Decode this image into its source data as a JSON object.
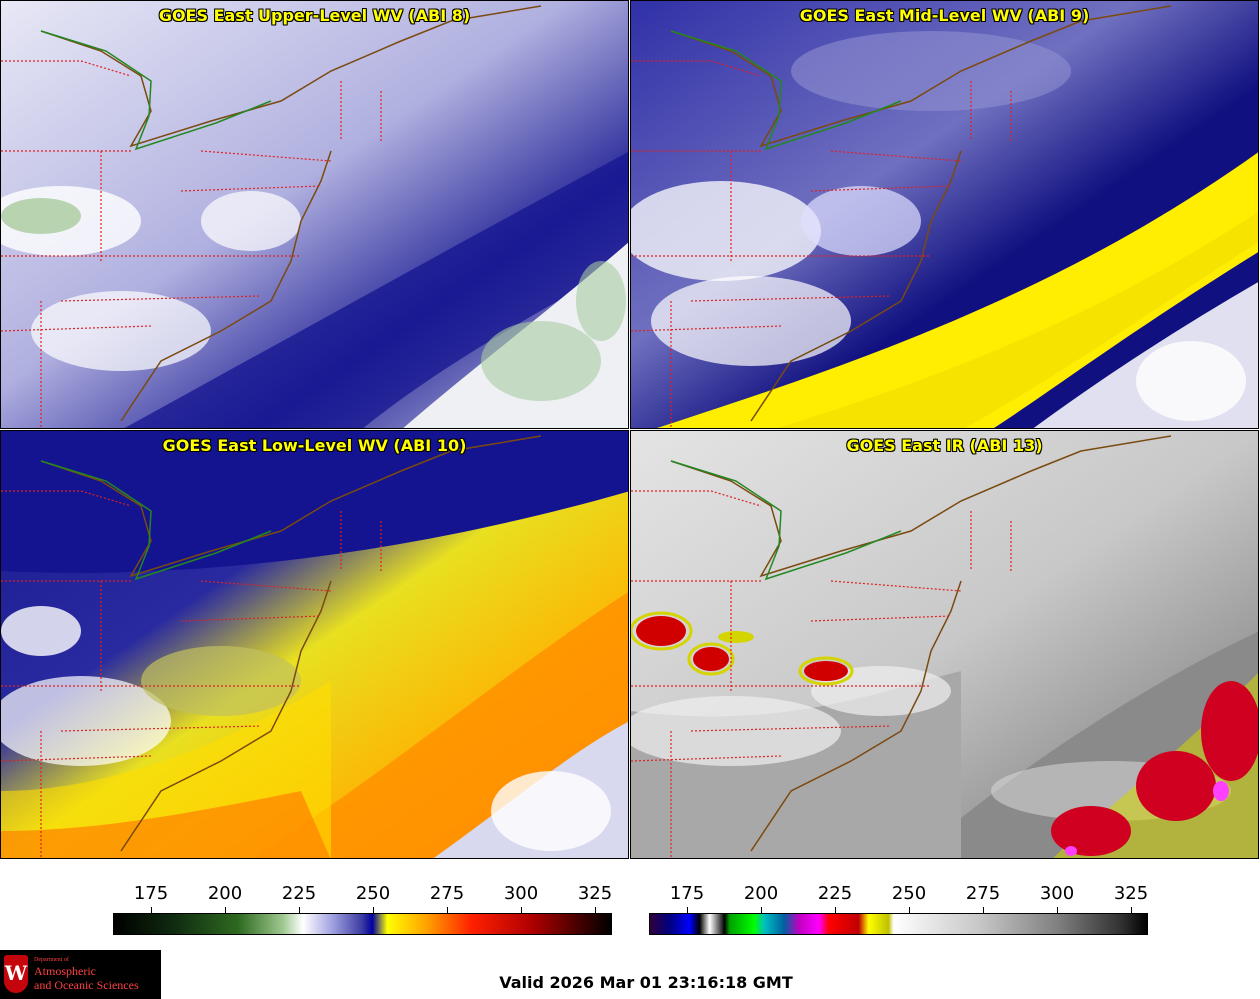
{
  "panels": {
    "upper": {
      "title": "GOES East Upper-Level WV (ABI 8)"
    },
    "mid": {
      "title": "GOES East Mid-Level WV (ABI 9)"
    },
    "low": {
      "title": "GOES East Low-Level WV (ABI 10)"
    },
    "ir": {
      "title": "GOES East IR (ABI 13)"
    }
  },
  "colorbars": {
    "wv": {
      "ticks": [
        "175",
        "200",
        "225",
        "250",
        "275",
        "300",
        "325"
      ]
    },
    "ir": {
      "ticks": [
        "175",
        "200",
        "225",
        "250",
        "275",
        "300",
        "325"
      ]
    }
  },
  "logo": {
    "crest": "W",
    "dept": "Department of",
    "line1": "Atmospheric",
    "line2": "and Oceanic Sciences"
  },
  "valid_time": "Valid 2026 Mar 01 23:16:18 GMT"
}
